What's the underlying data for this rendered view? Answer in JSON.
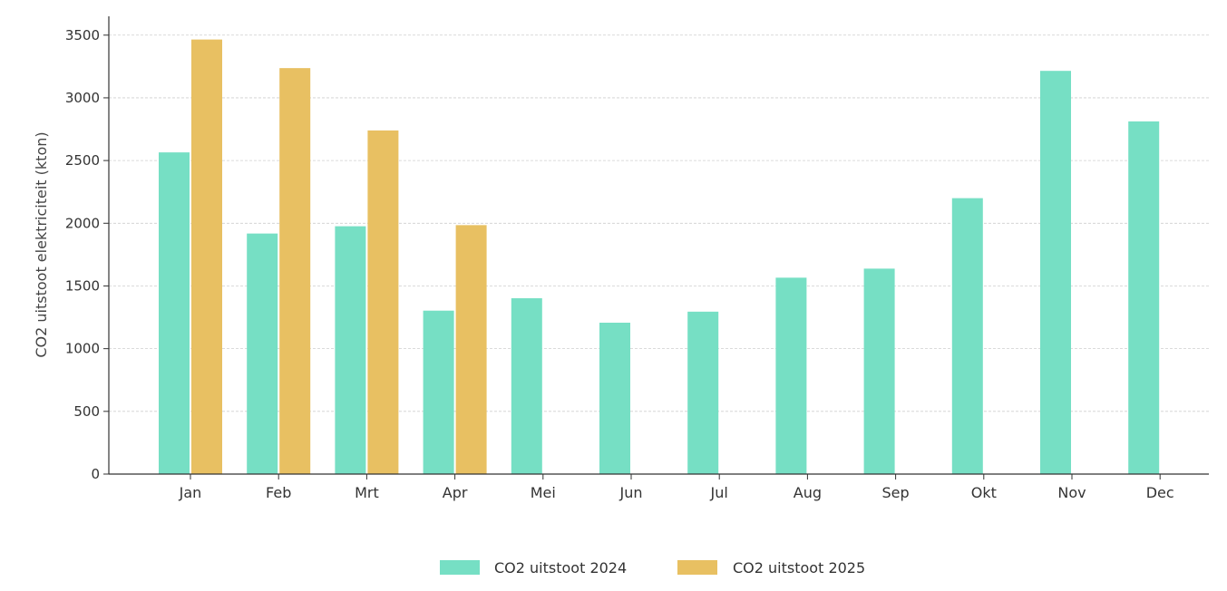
{
  "chart_data": {
    "type": "bar",
    "categories": [
      "Jan",
      "Feb",
      "Mrt",
      "Apr",
      "Mei",
      "Jun",
      "Jul",
      "Aug",
      "Sep",
      "Okt",
      "Nov",
      "Dec"
    ],
    "series": [
      {
        "name": "CO2 uitstoot 2024",
        "color": "#76dfc4",
        "values": [
          2565,
          1918,
          1976,
          1303,
          1402,
          1207,
          1295,
          1566,
          1638,
          2200,
          3215,
          2812
        ]
      },
      {
        "name": "CO2 uitstoot 2025",
        "color": "#e8c062",
        "values": [
          3465,
          3237,
          2740,
          1985,
          null,
          null,
          null,
          null,
          null,
          null,
          null,
          null
        ]
      }
    ],
    "title": "",
    "xlabel": "",
    "ylabel": "CO2 uitstoot elektriciteit (kton)",
    "ylim": [
      0,
      3650
    ],
    "yticks": [
      0,
      500,
      1000,
      1500,
      2000,
      2500,
      3000,
      3500
    ],
    "grid": "horizontal dashed",
    "legend_position": "bottom-center"
  }
}
